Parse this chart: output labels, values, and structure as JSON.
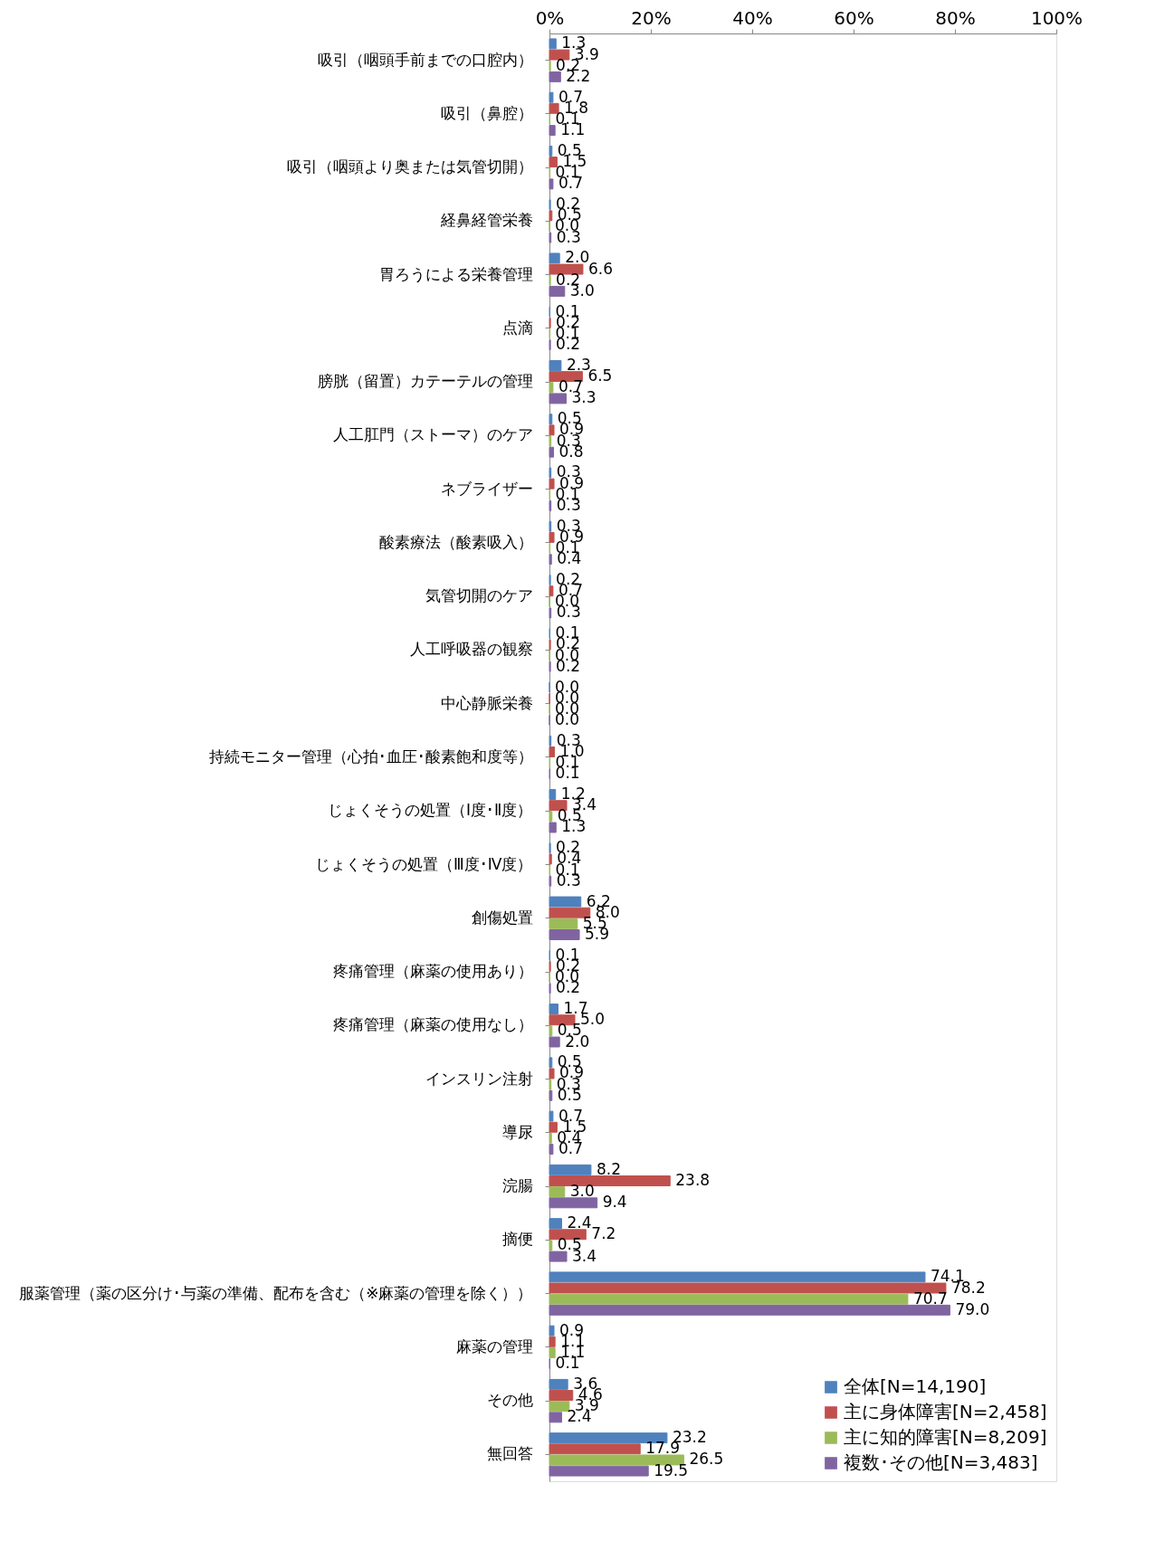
{
  "chart_data": {
    "type": "bar",
    "orientation": "horizontal",
    "categories": [
      "吸引（咽頭手前までの口腔内）",
      "吸引（鼻腔）",
      "吸引（咽頭より奥または気管切開）",
      "経鼻経管栄養",
      "胃ろうによる栄養管理",
      "点滴",
      "膀胱（留置）カテーテルの管理",
      "人工肛門（ストーマ）のケア",
      "ネブライザー",
      "酸素療法（酸素吸入）",
      "気管切開のケア",
      "人工呼吸器の観察",
      "中心静脈栄養",
      "持続モニター管理（心拍･血圧･酸素飽和度等）",
      "じょくそうの処置（Ⅰ度･Ⅱ度）",
      "じょくそうの処置（Ⅲ度･Ⅳ度）",
      "創傷処置",
      "疼痛管理（麻薬の使用あり）",
      "疼痛管理（麻薬の使用なし）",
      "インスリン注射",
      "導尿",
      "浣腸",
      "摘便",
      "服薬管理（薬の区分け･与薬の準備、配布を含む（※麻薬の管理を除く））",
      "麻薬の管理",
      "その他",
      "無回答"
    ],
    "series": [
      {
        "name": "全体[N=14,190]",
        "color": "#4f81bd",
        "values": [
          1.3,
          0.7,
          0.5,
          0.2,
          2.0,
          0.1,
          2.3,
          0.5,
          0.3,
          0.3,
          0.2,
          0.1,
          0.0,
          0.3,
          1.2,
          0.2,
          6.2,
          0.1,
          1.7,
          0.5,
          0.7,
          8.2,
          2.4,
          74.1,
          0.9,
          3.6,
          23.2
        ],
        "value_labels": [
          "1.3",
          "0.7",
          "0.5",
          "0.2",
          "2.0",
          "0.1",
          "2.3",
          "0.5",
          "0.3",
          "0.3",
          "0.2",
          "0.1",
          "0.0",
          "0.3",
          "1.2",
          "0.2",
          "6.2",
          "0.1",
          "1.7",
          "0.5",
          "0.7",
          "8.2",
          "2.4",
          "74.1",
          "0.9",
          "3.6",
          "23.2"
        ]
      },
      {
        "name": "主に身体障害[N=2,458]",
        "color": "#c0504d",
        "values": [
          3.9,
          1.8,
          1.5,
          0.5,
          6.6,
          0.2,
          6.5,
          0.9,
          0.9,
          0.9,
          0.7,
          0.2,
          0.0,
          1.0,
          3.4,
          0.4,
          8.0,
          0.2,
          5.0,
          0.9,
          1.5,
          23.8,
          7.2,
          78.2,
          1.1,
          4.6,
          17.9
        ],
        "value_labels": [
          "3.9",
          "1.8",
          "1.5",
          "0.5",
          "6.6",
          "0.2",
          "6.5",
          "0.9",
          "0.9",
          "0.9",
          "0.7",
          "0.2",
          "0.0",
          "1.0",
          "3.4",
          "0.4",
          "8.0",
          "0.2",
          "5.0",
          "0.9",
          "1.5",
          "23.8",
          "7.2",
          "78.2",
          "1.1",
          "4.6",
          "17.9"
        ]
      },
      {
        "name": "主に知的障害[N=8,209]",
        "color": "#9bbb59",
        "values": [
          0.2,
          0.1,
          0.1,
          0.0,
          0.2,
          0.1,
          0.7,
          0.3,
          0.1,
          0.1,
          0.0,
          0.0,
          0.0,
          0.1,
          0.5,
          0.1,
          5.5,
          0.0,
          0.5,
          0.3,
          0.4,
          3.0,
          0.5,
          70.7,
          1.1,
          3.9,
          26.5
        ],
        "value_labels": [
          "0.2",
          "0.1",
          "0.1",
          "0.0",
          "0.2",
          "0.1",
          "0.7",
          "0.3",
          "0.1",
          "0.1",
          "0.0",
          "0.0",
          "0.0",
          "0.1",
          "0.5",
          "0.1",
          "5.5",
          "0.0",
          "0.5",
          "0.3",
          "0.4",
          "3.0",
          "0.5",
          "70.7",
          "1.1",
          "3.9",
          "26.5"
        ]
      },
      {
        "name": "複数･その他[N=3,483]",
        "color": "#8064a2",
        "values": [
          2.2,
          1.1,
          0.7,
          0.3,
          3.0,
          0.2,
          3.3,
          0.8,
          0.3,
          0.4,
          0.3,
          0.2,
          0.0,
          0.1,
          1.3,
          0.3,
          5.9,
          0.2,
          2.0,
          0.5,
          0.7,
          9.4,
          3.4,
          79.0,
          0.1,
          2.4,
          19.5
        ],
        "value_labels": [
          "2.2",
          "1.1",
          "0.7",
          "0.3",
          "3.0",
          "0.2",
          "3.3",
          "0.8",
          "0.3",
          "0.4",
          "0.3",
          "0.2",
          "0.0",
          "0.1",
          "1.3",
          "0.3",
          "5.9",
          "0.2",
          "2.0",
          "0.5",
          "0.7",
          "9.4",
          "3.4",
          "79.0",
          "0.1",
          "2.4",
          "19.5"
        ]
      }
    ],
    "xlim": [
      0,
      100
    ],
    "xticks": [
      {
        "value": 0,
        "label": "0%"
      },
      {
        "value": 20,
        "label": "20%"
      },
      {
        "value": 40,
        "label": "40%"
      },
      {
        "value": 60,
        "label": "60%"
      },
      {
        "value": 80,
        "label": "80%"
      },
      {
        "value": 100,
        "label": "100%"
      }
    ],
    "legend": "bottom right",
    "grid": false
  }
}
